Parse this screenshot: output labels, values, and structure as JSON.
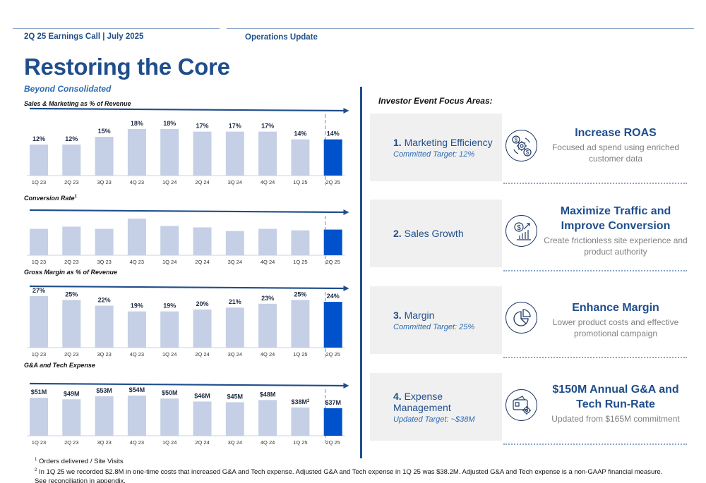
{
  "header": {
    "left": "2Q 25 Earnings Call | July 2025",
    "middle": "Operations Update",
    "title": "Restoring the Core",
    "subtitle": "Beyond Consolidated"
  },
  "colors": {
    "navy": "#1f4e8c",
    "bar": "#c5d0e6",
    "highlight": "#0052cc"
  },
  "chart_data": [
    {
      "type": "bar",
      "title": "Sales & Marketing as % of Revenue",
      "categories": [
        "1Q 23",
        "2Q 23",
        "3Q 23",
        "4Q 23",
        "1Q 24",
        "2Q 24",
        "3Q 24",
        "4Q 24",
        "1Q 25",
        "2Q 25"
      ],
      "values": [
        12,
        12,
        15,
        18,
        18,
        17,
        17,
        17,
        14,
        14
      ],
      "labels": [
        "12%",
        "12%",
        "15%",
        "18%",
        "18%",
        "17%",
        "17%",
        "17%",
        "14%",
        "14%"
      ],
      "highlight_index": 9,
      "ylim": [
        0,
        18
      ]
    },
    {
      "type": "bar",
      "title": "Conversion Rate",
      "title_sup": "1",
      "categories": [
        "1Q 23",
        "2Q 23",
        "3Q 23",
        "4Q 23",
        "1Q 24",
        "2Q 24",
        "3Q 24",
        "4Q 24",
        "1Q 25",
        "2Q 25"
      ],
      "values": [
        72,
        78,
        72,
        100,
        80,
        76,
        66,
        72,
        68,
        70
      ],
      "labels": [],
      "highlight_index": 9,
      "ylim": [
        0,
        100
      ]
    },
    {
      "type": "bar",
      "title": "Gross Margin as % of Revenue",
      "categories": [
        "1Q 23",
        "2Q 23",
        "3Q 23",
        "4Q 23",
        "1Q 24",
        "2Q 24",
        "3Q 24",
        "4Q 24",
        "1Q 25",
        "2Q 25"
      ],
      "values": [
        27,
        25,
        22,
        19,
        19,
        20,
        21,
        23,
        25,
        24
      ],
      "labels": [
        "27%",
        "25%",
        "22%",
        "19%",
        "19%",
        "20%",
        "21%",
        "23%",
        "25%",
        "24%"
      ],
      "highlight_index": 9,
      "ylim": [
        0,
        27
      ]
    },
    {
      "type": "bar",
      "title": "G&A and Tech Expense",
      "categories": [
        "1Q 23",
        "2Q 23",
        "3Q 23",
        "4Q 23",
        "1Q 24",
        "2Q 24",
        "3Q 24",
        "4Q 24",
        "1Q 25",
        "2Q 25"
      ],
      "values": [
        51,
        49,
        53,
        54,
        50,
        46,
        45,
        48,
        38,
        37
      ],
      "labels": [
        "$51M",
        "$49M",
        "$53M",
        "$54M",
        "$50M",
        "$46M",
        "$45M",
        "$48M",
        "$38M",
        "$37M"
      ],
      "label_sups": [
        "",
        "",
        "",
        "",
        "",
        "",
        "",
        "",
        "2",
        ""
      ],
      "highlight_index": 9,
      "ylim": [
        0,
        54
      ]
    }
  ],
  "focus": {
    "title": "Investor Event Focus Areas:",
    "items": [
      {
        "num": "1.",
        "name": "Marketing Efficiency",
        "target": "Committed Target: 12%",
        "icon": "gear-dollar-icon",
        "head": "Increase ROAS",
        "sub": "Focused ad spend using enriched customer data"
      },
      {
        "num": "2.",
        "name": "Sales Growth",
        "target": "",
        "icon": "dollar-growth-chart-icon",
        "head": "Maximize Traffic and Improve Conversion",
        "sub": "Create frictionless site experience and product authority"
      },
      {
        "num": "3.",
        "name": "Margin",
        "target": "Committed Target: 25%",
        "icon": "pie-chart-icon",
        "head": "Enhance Margin",
        "sub": "Lower product costs and effective promotional campaign"
      },
      {
        "num": "4.",
        "name": "Expense Management",
        "target": "Updated Target: ~$38M",
        "icon": "wallet-gear-icon",
        "head": "$150M Annual G&A and Tech Run-Rate",
        "sub": "Updated from $165M commitment"
      }
    ]
  },
  "footnotes": {
    "n1_mark": "1",
    "n1": "Orders delivered / Site Visits",
    "n2_mark": "2",
    "n2": "In 1Q 25 we recorded $2.8M in one-time costs that increased G&A and Tech expense. Adjusted G&A and Tech expense in 1Q 25 was $38.2M. Adjusted G&A and Tech expense is a non-GAAP financial measure.",
    "n2b": "See reconciliation in appendix."
  }
}
